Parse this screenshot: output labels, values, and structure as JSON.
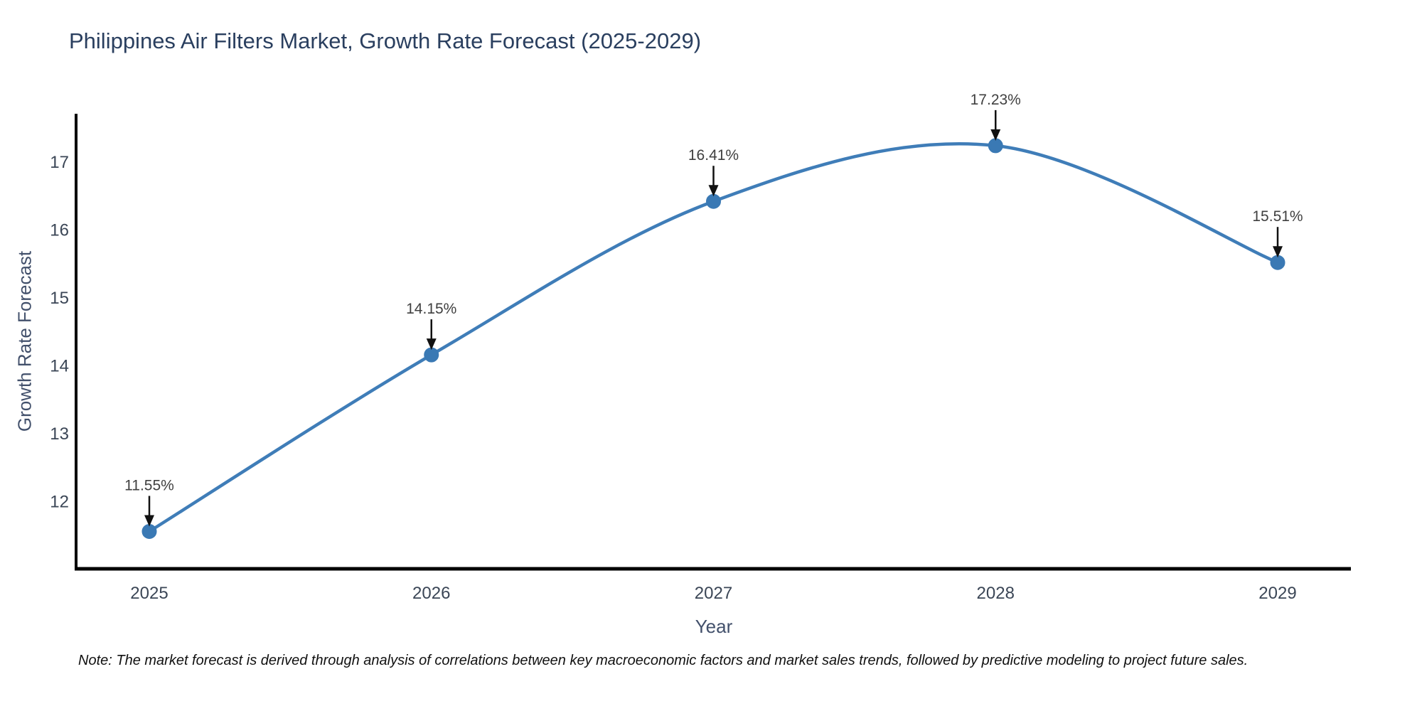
{
  "note": "Note: The market forecast is derived through analysis of correlations between key macroeconomic factors and market sales trends, followed by predictive modeling to project future sales.",
  "chart_data": {
    "type": "line",
    "title": "Philippines Air Filters Market, Growth Rate Forecast (2025-2029)",
    "xlabel": "Year",
    "ylabel": "Growth Rate Forecast",
    "x": [
      2025,
      2026,
      2027,
      2028,
      2029
    ],
    "values": [
      11.55,
      14.15,
      16.41,
      17.23,
      15.51
    ],
    "point_labels": [
      "11.55%",
      "14.15%",
      "16.41%",
      "17.23%",
      "15.51%"
    ],
    "line_shape": "spline",
    "ylim": [
      11.0,
      17.7
    ],
    "yticks": [
      12,
      13,
      14,
      15,
      16,
      17
    ],
    "grid": false,
    "legend": "none",
    "colors": {
      "line": "#3f7db8",
      "marker": "#3a79b4",
      "axis_line": "#000000",
      "title_text": "#2a3f5f",
      "tick_text": "#3b4656",
      "axis_title_text": "#42506b",
      "annotation_text": "#404040",
      "annotation_arrow": "#111111",
      "note_text": "#111111",
      "background": "#ffffff"
    }
  }
}
